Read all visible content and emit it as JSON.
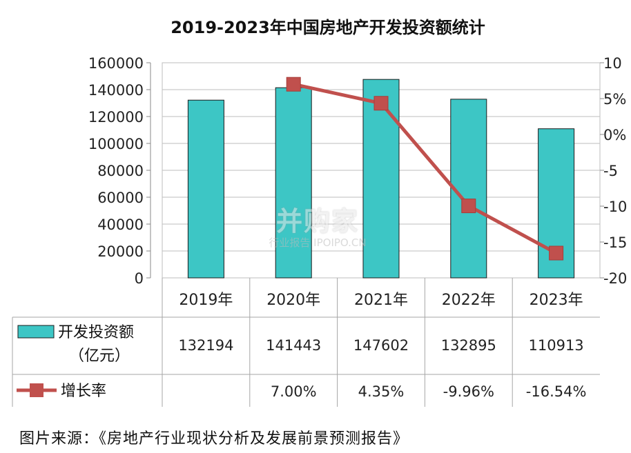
{
  "chart_data": {
    "type": "bar",
    "title": "2019-2023年中国房地产开发投资额统计",
    "categories": [
      "2019年",
      "2020年",
      "2021年",
      "2022年",
      "2023年"
    ],
    "series": [
      {
        "name": "开发投资额（亿元）",
        "type": "bar",
        "axis": "left",
        "color": "#3dc6c5",
        "values": [
          132194,
          141443,
          147602,
          132895,
          110913
        ],
        "table_labels": [
          "132194",
          "141443",
          "147602",
          "132895",
          "110913"
        ]
      },
      {
        "name": "增长率",
        "type": "line",
        "axis": "right",
        "color": "#c0504d",
        "values": [
          null,
          7.0,
          4.35,
          -9.96,
          -16.54
        ],
        "table_labels": [
          "",
          "7.00%",
          "4.35%",
          "-9.96%",
          "-16.54%"
        ]
      }
    ],
    "legend_labels": [
      "开发投资额",
      "（亿元）",
      "增长率"
    ],
    "left_axis": {
      "ylim": [
        0,
        160000
      ],
      "ticks": [
        0,
        20000,
        40000,
        60000,
        80000,
        100000,
        120000,
        140000,
        160000
      ],
      "tick_labels": [
        "0",
        "20000",
        "40000",
        "60000",
        "80000",
        "100000",
        "120000",
        "140000",
        "160000"
      ]
    },
    "right_axis": {
      "ylim": [
        -20,
        10
      ],
      "ticks": [
        10,
        5,
        0,
        -5,
        -10,
        -15,
        -20
      ],
      "tick_labels": [
        "10",
        "5%",
        "0%",
        "-5",
        "-10",
        "-15",
        "-20"
      ]
    },
    "grid": true,
    "legend_position": "data-table"
  },
  "source": "图片来源：《房地产行业现状分析及发展前景预测报告》",
  "watermark": {
    "logo": "并购家",
    "subtitle": "行业报告 IPOIPO.CN"
  }
}
